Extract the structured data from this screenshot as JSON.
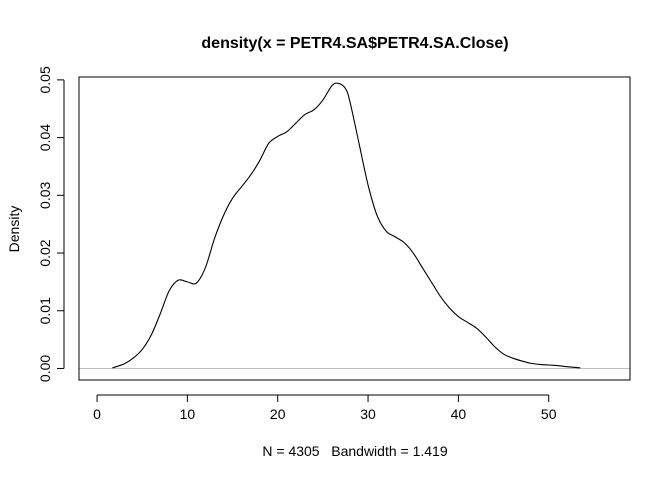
{
  "chart_data": {
    "type": "line",
    "title": "density(x = PETR4.SA$PETR4.SA.Close)",
    "xlabel": "N = 4305   Bandwidth = 1.419",
    "ylabel": "Density",
    "xlim": [
      -2,
      59
    ],
    "ylim": [
      -0.002,
      0.0505
    ],
    "x_ticks": [
      0,
      10,
      20,
      30,
      40,
      50
    ],
    "y_ticks": [
      0.0,
      0.01,
      0.02,
      0.03,
      0.04,
      0.05
    ],
    "x_tick_labels": [
      "0",
      "10",
      "20",
      "30",
      "40",
      "50"
    ],
    "y_tick_labels": [
      "0.00",
      "0.01",
      "0.02",
      "0.03",
      "0.04",
      "0.05"
    ],
    "reference_line_y": 0,
    "series": [
      {
        "x": [
          1.7,
          3.0,
          4.0,
          5.0,
          6.0,
          7.0,
          8.0,
          9.0,
          10.0,
          11.0,
          12.0,
          13.0,
          14.0,
          15.0,
          16.0,
          17.0,
          18.0,
          19.0,
          20.0,
          21.0,
          22.0,
          23.0,
          24.0,
          25.0,
          26.0,
          26.7,
          27.5,
          28.0,
          29.0,
          30.0,
          31.0,
          32.0,
          33.0,
          34.0,
          35.0,
          36.0,
          37.0,
          38.0,
          39.0,
          40.0,
          41.0,
          42.0,
          43.0,
          44.0,
          45.0,
          46.0,
          47.0,
          48.0,
          49.0,
          50.0,
          51.0,
          52.0,
          53.5
        ],
        "y": [
          0.0001,
          0.0008,
          0.0018,
          0.0033,
          0.0058,
          0.0095,
          0.0135,
          0.0153,
          0.015,
          0.0148,
          0.0175,
          0.0225,
          0.0265,
          0.0295,
          0.0315,
          0.0335,
          0.036,
          0.039,
          0.0402,
          0.041,
          0.0425,
          0.044,
          0.0448,
          0.0465,
          0.049,
          0.0494,
          0.0485,
          0.0462,
          0.039,
          0.0318,
          0.0265,
          0.0238,
          0.0228,
          0.0218,
          0.02,
          0.0175,
          0.015,
          0.0125,
          0.0105,
          0.009,
          0.008,
          0.007,
          0.0055,
          0.0038,
          0.0025,
          0.0018,
          0.0013,
          0.0009,
          0.0007,
          0.0006,
          0.0005,
          0.0003,
          0.0001
        ]
      }
    ]
  }
}
